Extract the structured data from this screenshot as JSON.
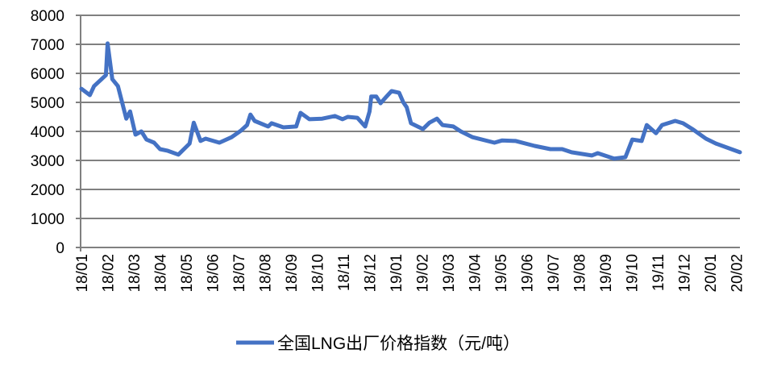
{
  "chart_data": {
    "type": "line",
    "title": "",
    "xlabel": "",
    "ylabel": "",
    "ylim": [
      0,
      8000
    ],
    "yticks": [
      0,
      1000,
      2000,
      3000,
      4000,
      5000,
      6000,
      7000,
      8000
    ],
    "xtick_labels": [
      "18/01",
      "18/02",
      "18/03",
      "18/04",
      "18/05",
      "18/06",
      "18/07",
      "18/08",
      "18/09",
      "18/10",
      "18/11",
      "18/12",
      "19/01",
      "19/02",
      "19/03",
      "19/04",
      "19/05",
      "19/06",
      "19/07",
      "19/08",
      "19/09",
      "19/10",
      "19/11",
      "19/12",
      "20/01",
      "20/02"
    ],
    "grid": "horizontal",
    "legend_position": "bottom",
    "series": [
      {
        "name": "全国LNG出厂价格指数（元/吨）",
        "color": "#4472C4",
        "points": [
          [
            "2018-01-01",
            5470
          ],
          [
            "2018-01-11",
            5250
          ],
          [
            "2018-01-16",
            5560
          ],
          [
            "2018-01-26",
            5830
          ],
          [
            "2018-01-30",
            5940
          ],
          [
            "2018-02-01",
            7030
          ],
          [
            "2018-02-06",
            5800
          ],
          [
            "2018-02-12",
            5560
          ],
          [
            "2018-02-21",
            4440
          ],
          [
            "2018-02-25",
            4690
          ],
          [
            "2018-03-03",
            3890
          ],
          [
            "2018-03-10",
            4000
          ],
          [
            "2018-03-16",
            3720
          ],
          [
            "2018-03-25",
            3610
          ],
          [
            "2018-04-01",
            3390
          ],
          [
            "2018-04-10",
            3330
          ],
          [
            "2018-04-22",
            3200
          ],
          [
            "2018-05-05",
            3580
          ],
          [
            "2018-05-10",
            4300
          ],
          [
            "2018-05-18",
            3670
          ],
          [
            "2018-05-24",
            3750
          ],
          [
            "2018-06-09",
            3610
          ],
          [
            "2018-06-23",
            3800
          ],
          [
            "2018-07-04",
            4030
          ],
          [
            "2018-07-11",
            4220
          ],
          [
            "2018-07-15",
            4580
          ],
          [
            "2018-07-20",
            4360
          ],
          [
            "2018-08-05",
            4170
          ],
          [
            "2018-08-09",
            4280
          ],
          [
            "2018-08-23",
            4140
          ],
          [
            "2018-09-07",
            4170
          ],
          [
            "2018-09-12",
            4640
          ],
          [
            "2018-09-22",
            4420
          ],
          [
            "2018-10-07",
            4440
          ],
          [
            "2018-10-22",
            4530
          ],
          [
            "2018-10-31",
            4420
          ],
          [
            "2018-11-06",
            4500
          ],
          [
            "2018-11-17",
            4470
          ],
          [
            "2018-11-26",
            4170
          ],
          [
            "2018-12-01",
            4690
          ],
          [
            "2018-12-03",
            5200
          ],
          [
            "2018-12-09",
            5200
          ],
          [
            "2018-12-14",
            4970
          ],
          [
            "2018-12-21",
            5200
          ],
          [
            "2018-12-27",
            5390
          ],
          [
            "2019-01-05",
            5330
          ],
          [
            "2019-01-10",
            5000
          ],
          [
            "2019-01-14",
            4830
          ],
          [
            "2019-01-19",
            4280
          ],
          [
            "2019-02-02",
            4080
          ],
          [
            "2019-02-09",
            4300
          ],
          [
            "2019-02-17",
            4440
          ],
          [
            "2019-02-23",
            4220
          ],
          [
            "2019-03-07",
            4170
          ],
          [
            "2019-03-16",
            4000
          ],
          [
            "2019-03-30",
            3800
          ],
          [
            "2019-04-24",
            3610
          ],
          [
            "2019-05-03",
            3690
          ],
          [
            "2019-05-19",
            3670
          ],
          [
            "2019-06-10",
            3500
          ],
          [
            "2019-06-28",
            3390
          ],
          [
            "2019-07-12",
            3390
          ],
          [
            "2019-07-23",
            3280
          ],
          [
            "2019-08-16",
            3170
          ],
          [
            "2019-08-23",
            3250
          ],
          [
            "2019-09-11",
            3060
          ],
          [
            "2019-09-24",
            3110
          ],
          [
            "2019-10-02",
            3720
          ],
          [
            "2019-10-13",
            3670
          ],
          [
            "2019-10-19",
            4220
          ],
          [
            "2019-10-30",
            3940
          ],
          [
            "2019-11-06",
            4220
          ],
          [
            "2019-11-21",
            4360
          ],
          [
            "2019-11-30",
            4280
          ],
          [
            "2019-12-11",
            4080
          ],
          [
            "2019-12-27",
            3750
          ],
          [
            "2020-01-08",
            3580
          ],
          [
            "2020-02-05",
            3280
          ]
        ]
      }
    ]
  }
}
